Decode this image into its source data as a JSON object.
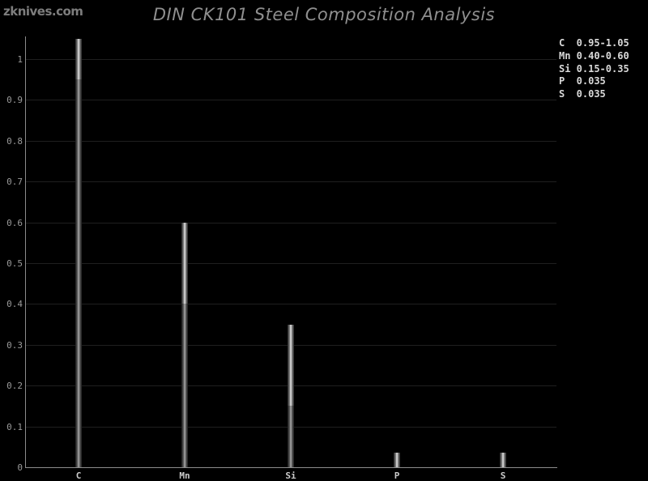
{
  "watermark": {
    "label": "zknives.com"
  },
  "header": {
    "title": "DIN CK101 Steel Composition Analysis"
  },
  "colors": {
    "background": "#000000",
    "title_text": "#8f8f8f",
    "watermark_text": "#7d7d7d",
    "axis_line": "#8c8c8c",
    "gridline": "#1f1f1f",
    "ytick_label": "#9a9a9a",
    "category_label": "#cccccc",
    "legend_text": "#d9d9d9",
    "bar_range_center": "#d4d4d4",
    "bar_base_center": "#9c9c9c"
  },
  "chart_data": {
    "type": "bar",
    "title": "DIN CK101 Steel Composition Analysis",
    "xlabel": "",
    "ylabel": "",
    "categories": [
      "C",
      "Mn",
      "Si",
      "P",
      "S"
    ],
    "series": [
      {
        "name": "range_min",
        "values": [
          0.95,
          0.4,
          0.15,
          0,
          0
        ]
      },
      {
        "name": "range_max",
        "values": [
          1.05,
          0.6,
          0.35,
          0.035,
          0.035
        ]
      }
    ],
    "ylim": [
      0,
      1.055
    ],
    "yticks": [
      0,
      0.1,
      0.2,
      0.3,
      0.4,
      0.5,
      0.6,
      0.7,
      0.8,
      0.9,
      1.0
    ],
    "ytick_labels": [
      "0",
      "0.1",
      "0.2",
      "0.3",
      "0.4",
      "0.5",
      "0.6",
      "0.7",
      "0.8",
      "0.9",
      "1"
    ],
    "grid": true,
    "legend_position": "top-right",
    "legend": [
      {
        "element": "C",
        "value": "0.95-1.05"
      },
      {
        "element": "Mn",
        "value": "0.40-0.60"
      },
      {
        "element": "Si",
        "value": "0.15-0.35"
      },
      {
        "element": "P",
        "value": "0.035"
      },
      {
        "element": "S",
        "value": "0.035"
      }
    ]
  }
}
